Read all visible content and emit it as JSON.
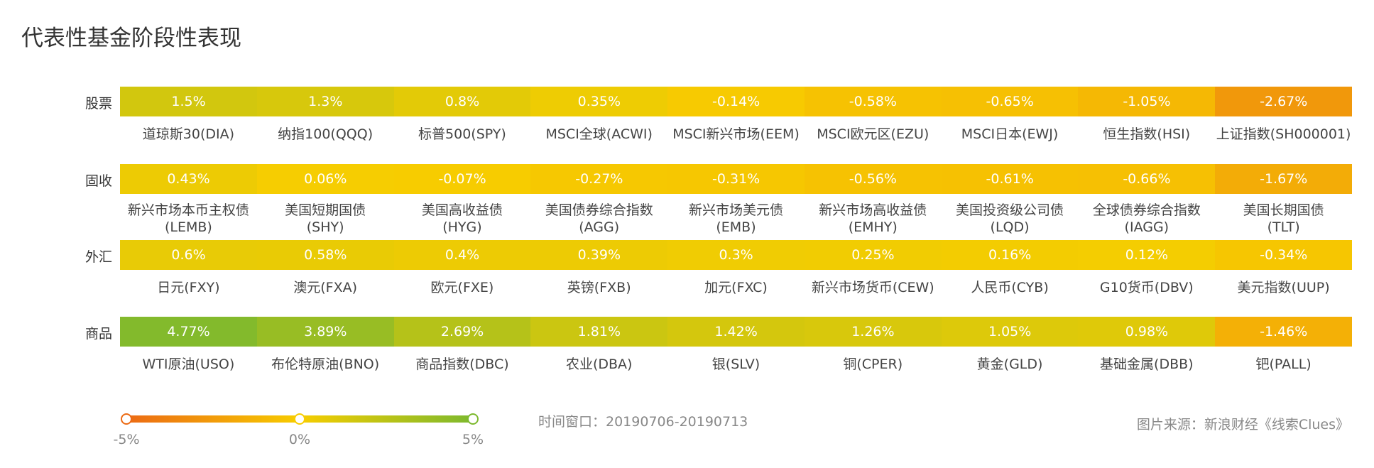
{
  "chart_data": {
    "type": "heatmap",
    "title": "代表性基金阶段性表现",
    "groups": [
      {
        "name": "股票",
        "categories": [
          "道琼斯30(DIA)",
          "纳指100(QQQ)",
          "标普500(SPY)",
          "MSCI全球(ACWI)",
          "MSCI新兴市场(EEM)",
          "MSCI欧元区(EZU)",
          "MSCI日本(EWJ)",
          "恒生指数(HSI)",
          "上证指数(SH000001)"
        ],
        "values": [
          1.5,
          1.3,
          0.8,
          0.35,
          -0.14,
          -0.58,
          -0.65,
          -1.05,
          -2.67
        ],
        "value_labels": [
          "1.5%",
          "1.3%",
          "0.8%",
          "0.35%",
          "-0.14%",
          "-0.58%",
          "-0.65%",
          "-1.05%",
          "-2.67%"
        ]
      },
      {
        "name": "固收",
        "categories": [
          "新兴市场本币主权债\n(LEMB)",
          "美国短期国债\n(SHY)",
          "美国高收益债\n(HYG)",
          "美国债券综合指数\n(AGG)",
          "新兴市场美元债\n(EMB)",
          "新兴市场高收益债\n(EMHY)",
          "美国投资级公司债\n(LQD)",
          "全球债券综合指数\n(IAGG)",
          "美国长期国债\n(TLT)"
        ],
        "values": [
          0.43,
          0.06,
          -0.07,
          -0.27,
          -0.31,
          -0.56,
          -0.61,
          -0.66,
          -1.67
        ],
        "value_labels": [
          "0.43%",
          "0.06%",
          "-0.07%",
          "-0.27%",
          "-0.31%",
          "-0.56%",
          "-0.61%",
          "-0.66%",
          "-1.67%"
        ]
      },
      {
        "name": "外汇",
        "categories": [
          "日元(FXY)",
          "澳元(FXA)",
          "欧元(FXE)",
          "英镑(FXB)",
          "加元(FXC)",
          "新兴市场货币(CEW)",
          "人民币(CYB)",
          "G10货币(DBV)",
          "美元指数(UUP)"
        ],
        "values": [
          0.6,
          0.58,
          0.4,
          0.39,
          0.3,
          0.25,
          0.16,
          0.12,
          -0.34
        ],
        "value_labels": [
          "0.6%",
          "0.58%",
          "0.4%",
          "0.39%",
          "0.3%",
          "0.25%",
          "0.16%",
          "0.12%",
          "-0.34%"
        ]
      },
      {
        "name": "商品",
        "categories": [
          "WTI原油(USO)",
          "布伦特原油(BNO)",
          "商品指数(DBC)",
          "农业(DBA)",
          "银(SLV)",
          "铜(CPER)",
          "黄金(GLD)",
          "基础金属(DBB)",
          "钯(PALL)"
        ],
        "values": [
          4.77,
          3.89,
          2.69,
          1.81,
          1.42,
          1.26,
          1.05,
          0.98,
          -1.46
        ],
        "value_labels": [
          "4.77%",
          "3.89%",
          "2.69%",
          "1.81%",
          "1.42%",
          "1.26%",
          "1.05%",
          "0.98%",
          "-1.46%"
        ]
      }
    ],
    "colorbar": {
      "lim": [
        -5,
        5
      ],
      "colors": [
        "#ec6a14",
        "#f7cd00",
        "#7db92e"
      ],
      "ticks": [
        {
          "value": -5,
          "label": "-5%"
        },
        {
          "value": 0,
          "label": "0%"
        },
        {
          "value": 5,
          "label": "5%"
        }
      ]
    },
    "note": "时间窗口：20190706-20190713",
    "source": "图片来源：新浪财经《线索Clues》"
  }
}
